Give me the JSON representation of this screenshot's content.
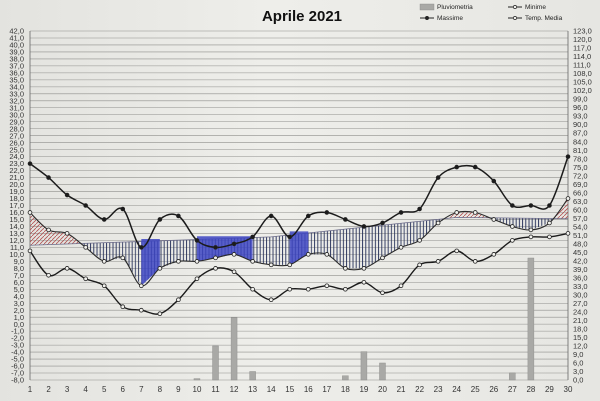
{
  "chart_data": {
    "type": "line",
    "title": "Aprile 2021",
    "x": [
      1,
      2,
      3,
      4,
      5,
      6,
      7,
      8,
      9,
      10,
      11,
      12,
      13,
      14,
      15,
      16,
      17,
      18,
      19,
      20,
      21,
      22,
      23,
      24,
      25,
      26,
      27,
      28,
      29,
      30
    ],
    "left_axis": {
      "min": -8,
      "max": 42,
      "step": 1
    },
    "right_axis": {
      "min": 0,
      "max": 123,
      "step": 3
    },
    "legend": [
      "Pluviometria",
      "Minime",
      "Massime",
      "Temp. Media"
    ],
    "series": [
      {
        "name": "Massime",
        "axis": "left",
        "values": [
          23,
          21,
          18.5,
          17,
          15,
          16.5,
          11,
          15,
          15.5,
          12,
          11,
          11.5,
          12.5,
          15.5,
          12.5,
          15.5,
          16,
          15,
          14,
          14.5,
          16,
          16.5,
          21,
          22.5,
          22.5,
          20.5,
          17,
          17,
          17,
          24
        ]
      },
      {
        "name": "Minime",
        "axis": "left",
        "values": [
          10.5,
          7,
          8,
          6.5,
          5.5,
          2.5,
          2,
          1.5,
          3.5,
          6.5,
          8,
          7.5,
          5,
          3.5,
          5,
          5,
          5.5,
          5,
          6,
          4.5,
          5.5,
          8.5,
          9,
          10.5,
          9,
          10,
          12,
          12.5,
          12.5,
          13
        ]
      },
      {
        "name": "Temp. Media",
        "axis": "left",
        "values": [
          16,
          13.5,
          13,
          11,
          9,
          9.5,
          5.5,
          8,
          9,
          9,
          9.5,
          10,
          9,
          8.5,
          8.5,
          10,
          10,
          8,
          8,
          9.5,
          11,
          12,
          14.5,
          16,
          16,
          15,
          14,
          13.5,
          14.5,
          18
        ]
      },
      {
        "name": "Pluviometria",
        "axis": "right",
        "values": [
          0,
          0,
          0,
          0,
          0,
          0,
          0,
          0,
          0,
          0.5,
          12,
          22,
          3,
          0,
          0,
          0,
          0,
          1.5,
          10,
          6,
          0,
          0,
          0,
          0,
          0,
          0,
          2.5,
          43,
          0,
          0
        ]
      }
    ]
  }
}
